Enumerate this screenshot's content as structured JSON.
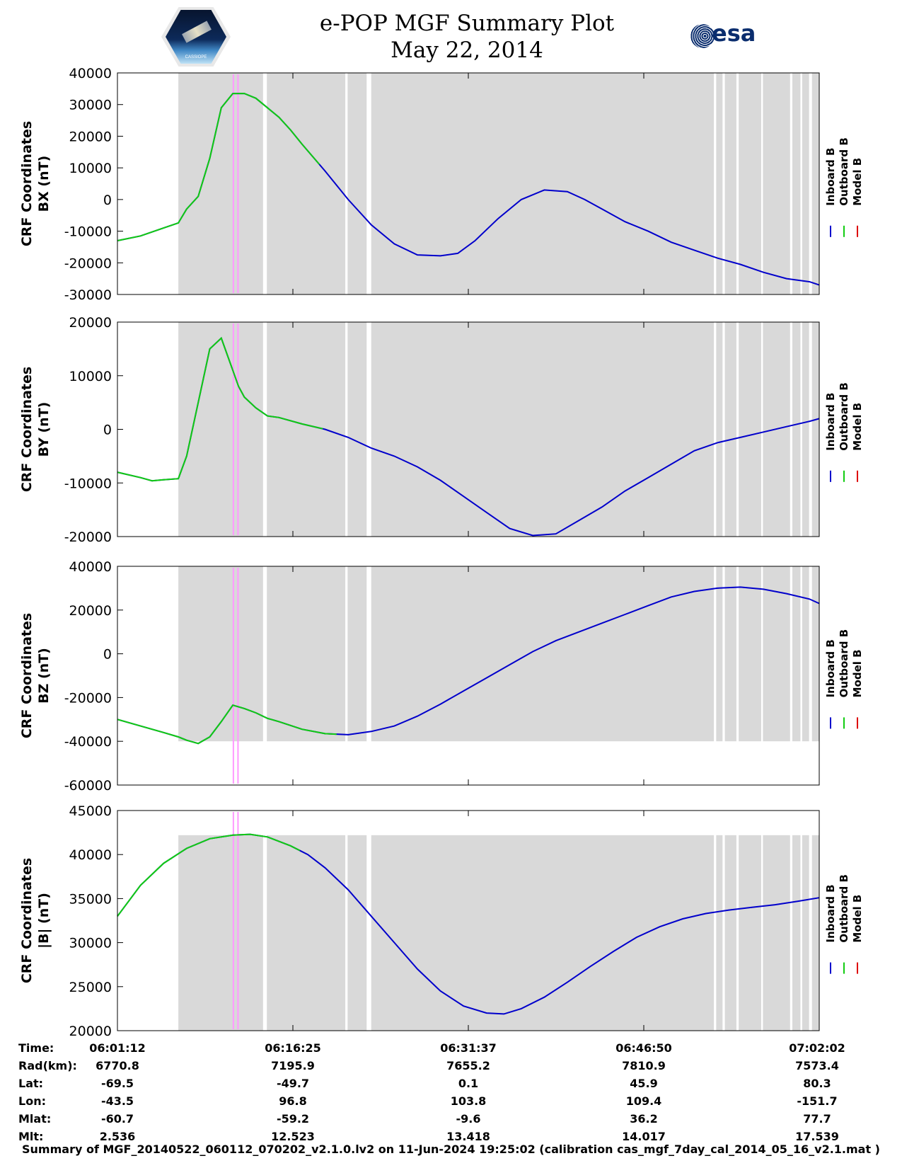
{
  "header": {
    "title_line1": "e-POP MGF Summary Plot",
    "title_line2": "May 22, 2014",
    "cassiope_logo_text": "CASSIOPE",
    "esa_logo_text": "esa"
  },
  "colors": {
    "inboard": "#0000cc",
    "outboard": "#11cc11",
    "model": "#dd0000",
    "data_coverage": "#d9d9d9",
    "event_marker": "#ff99ff"
  },
  "legend": [
    "Inboard B",
    "Outboard B",
    "Model B"
  ],
  "coverage": {
    "segments_minutes": [
      [
        5.28,
        12.62
      ],
      [
        12.95,
        19.75
      ],
      [
        19.95,
        21.6
      ],
      [
        22.0,
        51.7
      ],
      [
        51.9,
        52.45
      ],
      [
        52.65,
        53.65
      ],
      [
        53.85,
        55.8
      ],
      [
        55.95,
        58.3
      ],
      [
        58.5,
        59.2
      ],
      [
        59.35,
        59.95
      ],
      [
        60.2,
        60.85
      ]
    ],
    "event_markers_minutes": [
      10.05,
      10.45
    ]
  },
  "time_axis": {
    "start_time": "06:01:12",
    "span_minutes": 60.83
  },
  "chart_data": [
    {
      "type": "line",
      "ylabel_line1": "CRF Coordinates",
      "ylabel_line2": "BX (nT)",
      "ylim": [
        -30000,
        40000
      ],
      "yticks": [
        -30000,
        -20000,
        -10000,
        0,
        10000,
        20000,
        30000,
        40000
      ],
      "coverage_ylim_top": 40000,
      "coverage_ylim_bottom": -30000,
      "x_minutes": [
        0,
        2,
        4,
        5.28,
        6,
        7,
        8,
        9,
        10,
        11,
        12,
        13,
        14,
        15,
        16,
        18,
        20,
        22,
        24,
        26,
        28,
        29.5,
        31,
        33,
        35,
        37,
        39,
        40.5,
        42,
        44,
        46,
        48,
        50,
        52,
        54,
        56,
        58,
        60,
        60.83
      ],
      "series": [
        {
          "name": "Inboard B",
          "values": [
            -13000,
            -11500,
            -9000,
            -7400,
            -3000,
            1000,
            13000,
            29000,
            33500,
            33500,
            32000,
            29000,
            26000,
            22000,
            17500,
            9000,
            0,
            -8000,
            -14000,
            -17500,
            -17800,
            -17000,
            -13000,
            -6000,
            0,
            3000,
            2500,
            0,
            -3000,
            -7000,
            -10000,
            -13500,
            -16000,
            -18500,
            -20500,
            -23000,
            -25000,
            -26000,
            -27000
          ]
        },
        {
          "name": "Outboard B",
          "from": 0,
          "to": 17.5
        },
        {
          "name": "Model B",
          "from": 0,
          "to": 60.83
        }
      ]
    },
    {
      "type": "line",
      "ylabel_line1": "CRF Coordinates",
      "ylabel_line2": "BY (nT)",
      "ylim": [
        -20000,
        20000
      ],
      "yticks": [
        -20000,
        -10000,
        0,
        10000,
        20000
      ],
      "coverage_ylim_top": 20000,
      "coverage_ylim_bottom": -20000,
      "x_minutes": [
        0,
        2,
        3,
        4,
        5.28,
        6,
        7,
        8,
        9,
        10,
        10.5,
        11,
        12,
        13,
        14,
        16,
        18,
        20,
        22,
        24,
        26,
        28,
        30,
        32,
        34,
        36,
        38,
        40,
        42,
        44,
        46,
        48,
        50,
        52,
        54,
        56,
        58,
        60,
        60.83
      ],
      "series": [
        {
          "name": "Inboard B",
          "values": [
            -8000,
            -9000,
            -9600,
            -9400,
            -9200,
            -5000,
            5000,
            15000,
            17000,
            11000,
            8000,
            6000,
            4000,
            2500,
            2200,
            1000,
            0,
            -1500,
            -3500,
            -5000,
            -7000,
            -9500,
            -12500,
            -15500,
            -18500,
            -19800,
            -19500,
            -17000,
            -14500,
            -11500,
            -9000,
            -6500,
            -4000,
            -2500,
            -1500,
            -500,
            500,
            1500,
            2000
          ]
        },
        {
          "name": "Outboard B",
          "from": 0,
          "to": 17.8
        },
        {
          "name": "Model B",
          "from": 0,
          "to": 60.83
        }
      ]
    },
    {
      "type": "line",
      "ylabel_line1": "CRF Coordinates",
      "ylabel_line2": "BZ (nT)",
      "ylim": [
        -60000,
        40000
      ],
      "yticks": [
        -60000,
        -40000,
        -20000,
        0,
        20000,
        40000
      ],
      "coverage_ylim_top": 40000,
      "coverage_ylim_bottom": -40000,
      "x_minutes": [
        0,
        2,
        4,
        5.28,
        6,
        7,
        8,
        9,
        10,
        11,
        12,
        13,
        14,
        16,
        18,
        20,
        22,
        24,
        26,
        28,
        30,
        32,
        34,
        36,
        38,
        40,
        42,
        44,
        46,
        48,
        50,
        52,
        54,
        56,
        58,
        60,
        60.83
      ],
      "series": [
        {
          "name": "Inboard B",
          "values": [
            -30000,
            -33000,
            -36000,
            -38000,
            -39500,
            -41000,
            -38000,
            -31000,
            -23500,
            -25000,
            -27000,
            -29500,
            -31000,
            -34500,
            -36500,
            -37000,
            -35500,
            -33000,
            -28500,
            -23000,
            -17000,
            -11000,
            -5000,
            1000,
            6000,
            10000,
            14000,
            18000,
            22000,
            26000,
            28500,
            30000,
            30500,
            29500,
            27500,
            25000,
            23000
          ]
        },
        {
          "name": "Outboard B",
          "from": 0,
          "to": 19.0
        },
        {
          "name": "Model B",
          "from": 0,
          "to": 60.83
        }
      ]
    },
    {
      "type": "line",
      "ylabel_line1": "CRF Coordinates",
      "ylabel_line2": "|B| (nT)",
      "ylim": [
        20000,
        45000
      ],
      "yticks": [
        20000,
        25000,
        30000,
        35000,
        40000,
        45000
      ],
      "coverage_ylim_top": 42200,
      "coverage_ylim_bottom": 20000,
      "x_minutes": [
        0,
        2,
        4,
        6,
        8,
        10,
        11.5,
        13,
        15,
        16.5,
        18,
        20,
        22,
        24,
        26,
        28,
        30,
        32,
        33.5,
        35,
        37,
        39,
        41,
        43,
        45,
        47,
        49,
        51,
        53,
        55,
        57,
        59,
        60.83
      ],
      "series": [
        {
          "name": "Inboard B",
          "values": [
            33000,
            36500,
            39000,
            40700,
            41800,
            42200,
            42300,
            42000,
            41000,
            40000,
            38500,
            36000,
            33000,
            30000,
            27000,
            24500,
            22800,
            22000,
            21900,
            22500,
            23800,
            25500,
            27300,
            29000,
            30600,
            31800,
            32700,
            33300,
            33700,
            34000,
            34300,
            34700,
            35100
          ]
        },
        {
          "name": "Outboard B",
          "from": 0,
          "to": 15.8
        },
        {
          "name": "Model B",
          "from": 0,
          "to": 60.83
        }
      ]
    }
  ],
  "ephemeris": {
    "row_labels": [
      "Time:",
      "Rad(km):",
      "Lat:",
      "Lon:",
      "Mlat:",
      "Mlt:"
    ],
    "columns": [
      {
        "time": "06:01:12",
        "rad": "6770.8",
        "lat": "-69.5",
        "lon": "-43.5",
        "mlat": "-60.7",
        "mlt": "2.536"
      },
      {
        "time": "06:16:25",
        "rad": "7195.9",
        "lat": "-49.7",
        "lon": "96.8",
        "mlat": "-59.2",
        "mlt": "12.523"
      },
      {
        "time": "06:31:37",
        "rad": "7655.2",
        "lat": "0.1",
        "lon": "103.8",
        "mlat": "-9.6",
        "mlt": "13.418"
      },
      {
        "time": "06:46:50",
        "rad": "7810.9",
        "lat": "45.9",
        "lon": "109.4",
        "mlat": "36.2",
        "mlt": "14.017"
      },
      {
        "time": "07:02:02",
        "rad": "7573.4",
        "lat": "80.3",
        "lon": "-151.7",
        "mlat": "77.7",
        "mlt": "17.539"
      }
    ]
  },
  "footer": "Summary of MGF_20140522_060112_070202_v2.1.0.lv2 on 11-Jun-2024 19:25:02 (calibration cas_mgf_7day_cal_2014_05_16_v2.1.mat )"
}
